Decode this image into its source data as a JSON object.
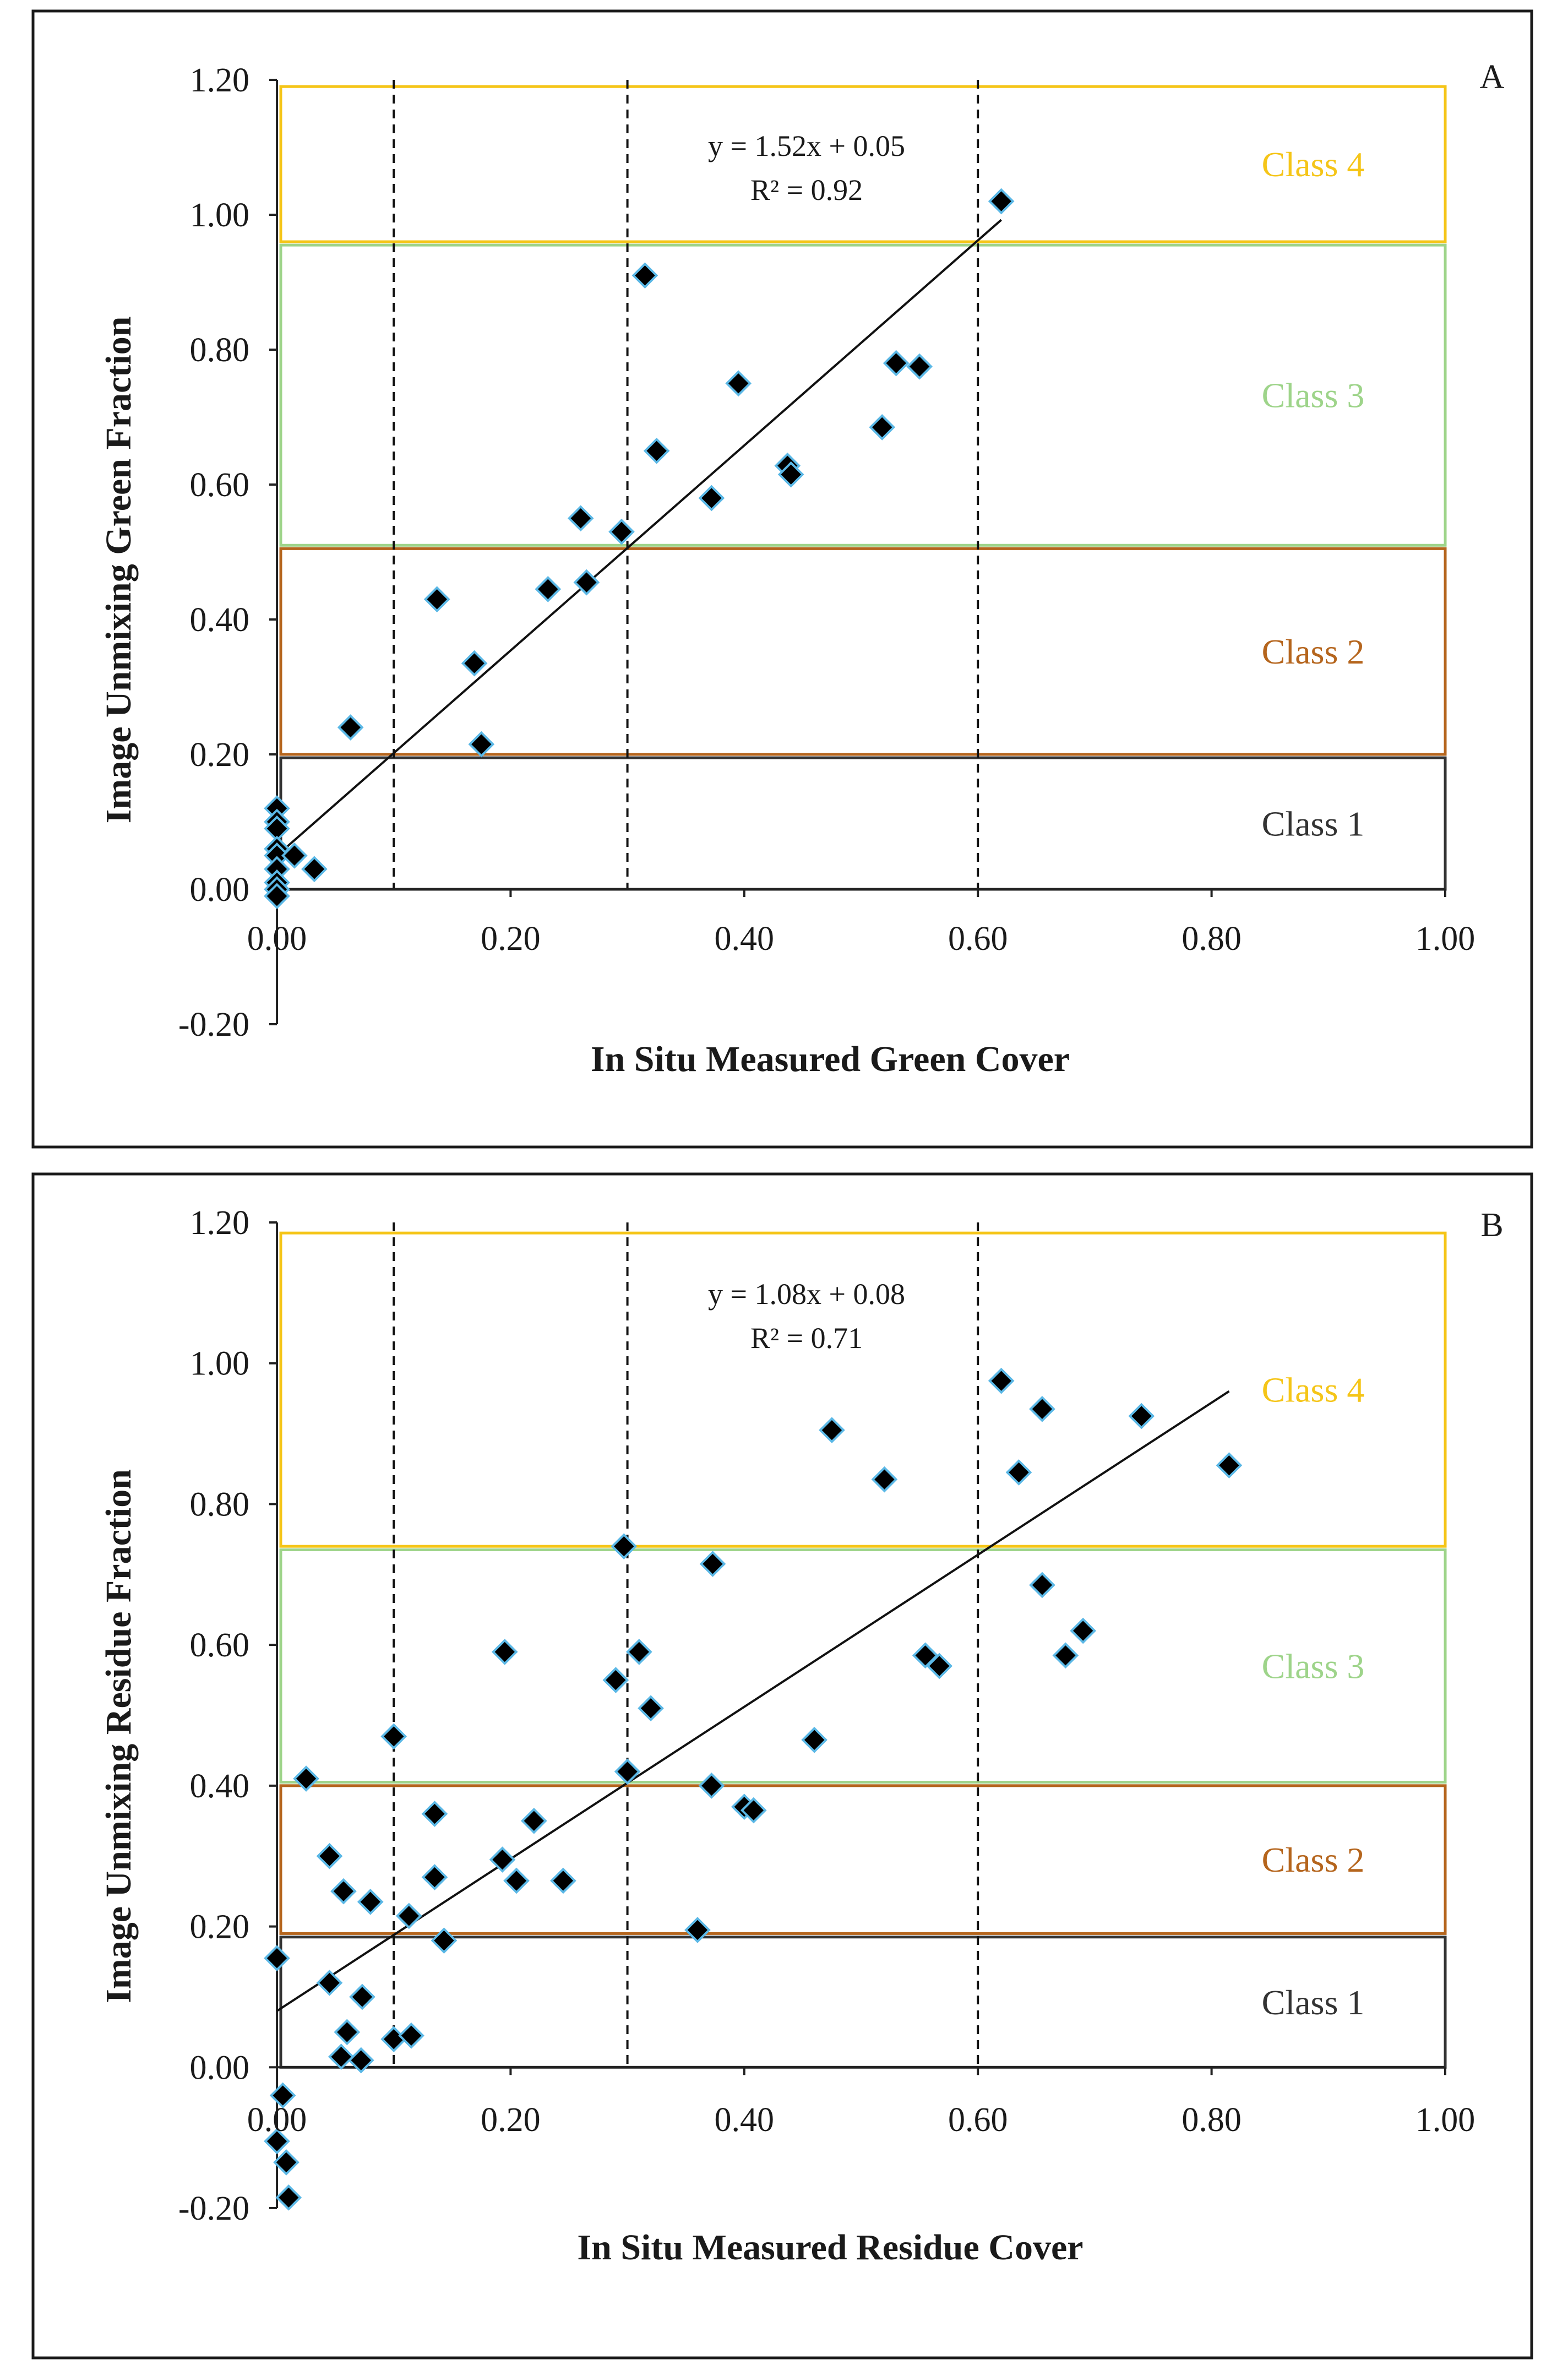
{
  "figure": {
    "description_labels": [
      "A",
      "B"
    ]
  },
  "chart_data": [
    {
      "type": "scatter",
      "panel_label": "A",
      "xlabel": "In Situ Measured Green Cover",
      "ylabel": "Image Unmixing Green Fraction",
      "xlim": [
        0.0,
        1.0
      ],
      "ylim": [
        -0.2,
        1.2
      ],
      "x_ticks": [
        "0.00",
        "0.20",
        "0.40",
        "0.60",
        "0.80",
        "1.00"
      ],
      "y_ticks": [
        "-0.20",
        "0.00",
        "0.20",
        "0.40",
        "0.60",
        "0.80",
        "1.00",
        "1.20"
      ],
      "x_tick_values": [
        0,
        0.2,
        0.4,
        0.6,
        0.8,
        1.0
      ],
      "y_tick_values": [
        -0.2,
        0,
        0.2,
        0.4,
        0.6,
        0.8,
        1.0,
        1.2
      ],
      "vlines": [
        0.1,
        0.3,
        0.6
      ],
      "equation": "y = 1.52x + 0.05",
      "r2": "R² = 0.92",
      "regression": {
        "slope": 1.52,
        "intercept": 0.05,
        "x_range": [
          0.0,
          0.62
        ]
      },
      "classes": [
        {
          "label": "Class 4",
          "ymin": 0.96,
          "ymax": 1.19,
          "color": "#f5c518"
        },
        {
          "label": "Class 3",
          "ymin": 0.51,
          "ymax": 0.955,
          "color": "#9ed48a"
        },
        {
          "label": "Class 2",
          "ymin": 0.2,
          "ymax": 0.505,
          "color": "#b5651d"
        },
        {
          "label": "Class 1",
          "ymin": 0.0,
          "ymax": 0.195,
          "color": "#333333"
        }
      ],
      "x": [
        0.62,
        0.315,
        0.395,
        0.53,
        0.55,
        0.518,
        0.437,
        0.44,
        0.325,
        0.372,
        0.26,
        0.295,
        0.232,
        0.265,
        0.137,
        0.169,
        0.175,
        0.063,
        0.0,
        0.0,
        0.0,
        0.0,
        0.0,
        0.0,
        0.0,
        0.0,
        0.0,
        0.015,
        0.032
      ],
      "y": [
        1.02,
        0.91,
        0.75,
        0.78,
        0.775,
        0.685,
        0.628,
        0.615,
        0.65,
        0.58,
        0.55,
        0.53,
        0.445,
        0.455,
        0.43,
        0.335,
        0.215,
        0.24,
        0.12,
        0.1,
        0.09,
        0.06,
        0.05,
        0.03,
        0.01,
        0.0,
        -0.01,
        0.05,
        0.03
      ]
    },
    {
      "type": "scatter",
      "panel_label": "B",
      "xlabel": "In Situ Measured Residue Cover",
      "ylabel": "Image Unmixing Residue Fraction",
      "xlim": [
        0.0,
        1.0
      ],
      "ylim": [
        -0.2,
        1.2
      ],
      "x_ticks": [
        "0.00",
        "0.20",
        "0.40",
        "0.60",
        "0.80",
        "1.00"
      ],
      "y_ticks": [
        "-0.20",
        "0.00",
        "0.20",
        "0.40",
        "0.60",
        "0.80",
        "1.00",
        "1.20"
      ],
      "x_tick_values": [
        0,
        0.2,
        0.4,
        0.6,
        0.8,
        1.0
      ],
      "y_tick_values": [
        -0.2,
        0,
        0.2,
        0.4,
        0.6,
        0.8,
        1.0,
        1.2
      ],
      "vlines": [
        0.1,
        0.3,
        0.6
      ],
      "equation": "y = 1.08x + 0.08",
      "r2": "R² = 0.71",
      "regression": {
        "slope": 1.08,
        "intercept": 0.08,
        "x_range": [
          0.0,
          0.815
        ]
      },
      "classes": [
        {
          "label": "Class 4",
          "ymin": 0.74,
          "ymax": 1.185,
          "color": "#f5c518"
        },
        {
          "label": "Class 3",
          "ymin": 0.405,
          "ymax": 0.735,
          "color": "#9ed48a"
        },
        {
          "label": "Class 2",
          "ymin": 0.19,
          "ymax": 0.4,
          "color": "#b5651d"
        },
        {
          "label": "Class 1",
          "ymin": 0.0,
          "ymax": 0.185,
          "color": "#333333"
        }
      ],
      "x": [
        0.62,
        0.655,
        0.74,
        0.815,
        0.635,
        0.475,
        0.52,
        0.297,
        0.373,
        0.655,
        0.69,
        0.675,
        0.555,
        0.567,
        0.195,
        0.31,
        0.29,
        0.32,
        0.46,
        0.1,
        0.025,
        0.3,
        0.372,
        0.4,
        0.408,
        0.135,
        0.22,
        0.045,
        0.135,
        0.193,
        0.205,
        0.245,
        0.057,
        0.08,
        0.36,
        0.113,
        0.143,
        0.0,
        0.045,
        0.073,
        0.06,
        0.1,
        0.115,
        0.055,
        0.072,
        0.005,
        0.0,
        0.008,
        0.01
      ],
      "y": [
        0.975,
        0.935,
        0.925,
        0.855,
        0.845,
        0.905,
        0.835,
        0.74,
        0.715,
        0.685,
        0.62,
        0.585,
        0.585,
        0.57,
        0.59,
        0.59,
        0.55,
        0.51,
        0.465,
        0.47,
        0.41,
        0.42,
        0.4,
        0.37,
        0.365,
        0.36,
        0.35,
        0.3,
        0.27,
        0.295,
        0.265,
        0.265,
        0.25,
        0.235,
        0.195,
        0.215,
        0.18,
        0.155,
        0.12,
        0.1,
        0.05,
        0.04,
        0.045,
        0.015,
        0.01,
        -0.04,
        -0.105,
        -0.135,
        -0.185
      ]
    }
  ]
}
